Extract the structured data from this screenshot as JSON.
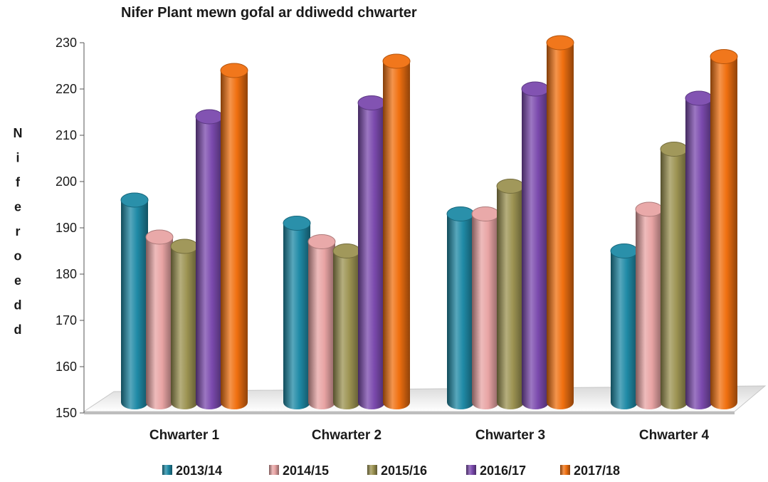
{
  "chart_data": {
    "type": "bar",
    "title": "Nifer Plant mewn gofal ar ddiwedd chwarter",
    "ylabel": "Niferoedd",
    "xlabel": "",
    "ylim": [
      150,
      230
    ],
    "yticks": [
      150,
      160,
      170,
      180,
      190,
      200,
      210,
      220,
      230
    ],
    "categories": [
      "Chwarter 1",
      "Chwarter 2",
      "Chwarter 3",
      "Chwarter 4"
    ],
    "series": [
      {
        "name": "2013/14",
        "values": [
          196,
          191,
          193,
          185
        ],
        "color": "#1f8aa6"
      },
      {
        "name": "2014/15",
        "values": [
          188,
          187,
          193,
          194
        ],
        "color": "#e8a4a4"
      },
      {
        "name": "2015/16",
        "values": [
          186,
          185,
          199,
          207
        ],
        "color": "#9c9352"
      },
      {
        "name": "2016/17",
        "values": [
          214,
          217,
          220,
          218
        ],
        "color": "#7b4aae"
      },
      {
        "name": "2017/18",
        "values": [
          224,
          226,
          230,
          227
        ],
        "color": "#f07010"
      }
    ],
    "legend_position": "bottom",
    "grid": false
  }
}
